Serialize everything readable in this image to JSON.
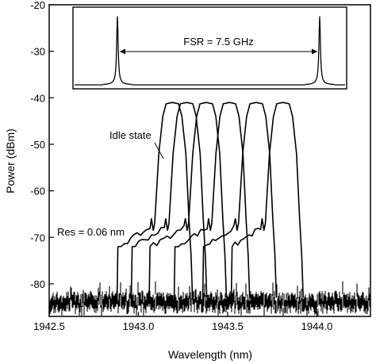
{
  "chart_data": {
    "type": "line",
    "title": "",
    "xlabel": "Wavelength (nm)",
    "ylabel": "Power (dBm)",
    "xlim": [
      1942.5,
      1944.3
    ],
    "ylim": [
      -87,
      -20
    ],
    "x_ticks": [
      1942.5,
      1943.0,
      1943.5,
      1944.0
    ],
    "x_tick_labels": [
      "1942.5",
      "1943.0",
      "1943.5",
      "1944.0"
    ],
    "y_ticks": [
      -80,
      -70,
      -60,
      -50,
      -40,
      -30,
      -20
    ],
    "y_tick_labels": [
      "-80",
      "-70",
      "-60",
      "-50",
      "-40",
      "-30",
      "-20"
    ],
    "grid": false,
    "line_color": "#000000",
    "noise_floor_dbm": -84,
    "series": [
      {
        "center_nm": 1943.19,
        "peak_dbm": -41,
        "skirt_start_nm": 1942.88
      },
      {
        "center_nm": 1943.27,
        "peak_dbm": -41,
        "skirt_start_nm": 1942.96
      },
      {
        "center_nm": 1943.38,
        "peak_dbm": -41,
        "skirt_start_nm": 1943.06
      },
      {
        "center_nm": 1943.51,
        "peak_dbm": -41,
        "skirt_start_nm": 1943.2
      },
      {
        "center_nm": 1943.66,
        "peak_dbm": -41,
        "skirt_start_nm": 1943.36
      },
      {
        "center_nm": 1943.81,
        "peak_dbm": -41,
        "skirt_start_nm": 1943.52
      }
    ],
    "annotations": {
      "idle_state": "Idle state",
      "resolution": "Res = 0.06 nm"
    },
    "inset": {
      "label": "FSR = 7.5 GHz",
      "peaks": 2
    }
  }
}
